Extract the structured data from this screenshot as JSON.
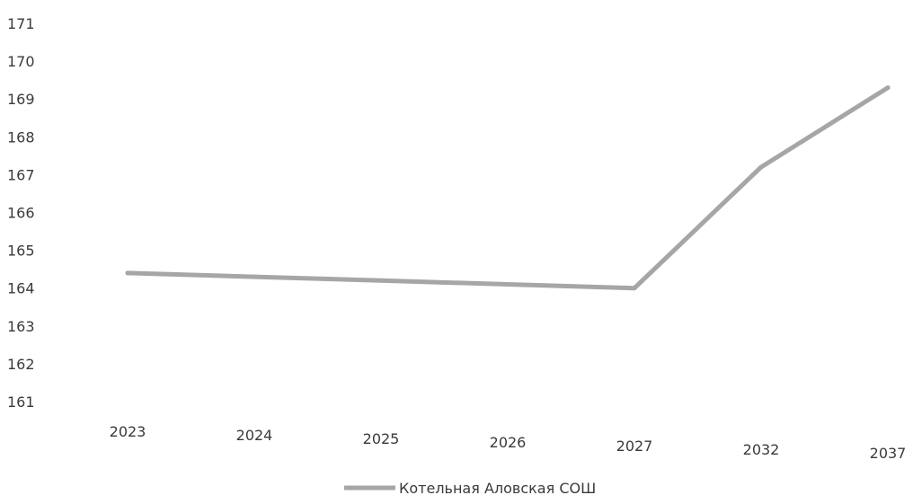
{
  "chart_data": {
    "type": "line",
    "title": "",
    "xlabel": "",
    "ylabel": "",
    "categories": [
      "2023",
      "2024",
      "2025",
      "2026",
      "2027",
      "2032",
      "2037"
    ],
    "series": [
      {
        "name": "Котельная Аловская СОШ",
        "values": [
          164.4,
          164.3,
          164.2,
          164.1,
          164.0,
          167.2,
          169.3
        ],
        "color": "#a6a6a6"
      }
    ],
    "ylim": [
      161,
      171
    ],
    "yticks": [
      "161",
      "162",
      "163",
      "164",
      "165",
      "166",
      "167",
      "168",
      "169",
      "170",
      "171"
    ],
    "grid": false,
    "legend_position": "bottom"
  }
}
